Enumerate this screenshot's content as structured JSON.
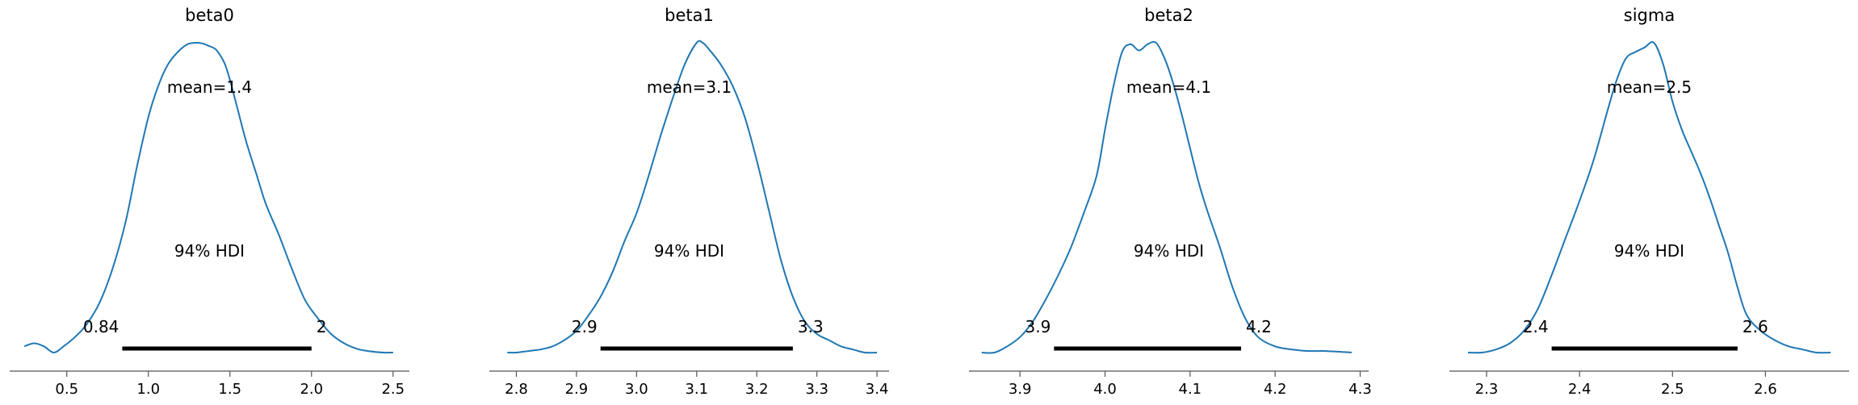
{
  "chart_data": [
    {
      "type": "line",
      "title": "beta0",
      "mean_label": "mean=1.4",
      "hdi_label": "94% HDI",
      "hdi": [
        0.84,
        2.0
      ],
      "hdi_low_label": "0.84",
      "hdi_high_label": "2",
      "xlim": [
        0.15,
        2.6
      ],
      "ticks": [
        0.5,
        1.0,
        1.5,
        2.0,
        2.5
      ],
      "tick_labels": [
        "0.5",
        "1.0",
        "1.5",
        "2.0",
        "2.5"
      ],
      "density_x": [
        0.24,
        0.3,
        0.36,
        0.42,
        0.48,
        0.55,
        0.62,
        0.7,
        0.78,
        0.86,
        0.93,
        1.0,
        1.06,
        1.12,
        1.18,
        1.24,
        1.29,
        1.33,
        1.37,
        1.41,
        1.44,
        1.47,
        1.5,
        1.55,
        1.6,
        1.66,
        1.72,
        1.8,
        1.88,
        1.96,
        2.04,
        2.12,
        2.2,
        2.28,
        2.36,
        2.44,
        2.5
      ],
      "density_y": [
        0.02,
        0.03,
        0.02,
        0.0,
        0.02,
        0.05,
        0.09,
        0.16,
        0.27,
        0.42,
        0.6,
        0.76,
        0.86,
        0.93,
        0.97,
        0.995,
        1.0,
        0.998,
        0.99,
        0.98,
        0.96,
        0.93,
        0.88,
        0.78,
        0.68,
        0.58,
        0.48,
        0.38,
        0.27,
        0.17,
        0.11,
        0.06,
        0.03,
        0.012,
        0.004,
        0.0,
        0.0
      ],
      "density_scale": 0.9
    },
    {
      "type": "line",
      "title": "beta1",
      "mean_label": "mean=3.1",
      "hdi_label": "94% HDI",
      "hdi": [
        2.94,
        3.26
      ],
      "hdi_low_label": "2.9",
      "hdi_high_label": "3.3",
      "xlim": [
        2.755,
        3.42
      ],
      "ticks": [
        2.8,
        2.9,
        3.0,
        3.1,
        3.2,
        3.3,
        3.4
      ],
      "tick_labels": [
        "2.8",
        "2.9",
        "3.0",
        "3.1",
        "3.2",
        "3.3",
        "3.4"
      ],
      "density_x": [
        2.785,
        2.8,
        2.82,
        2.84,
        2.86,
        2.88,
        2.9,
        2.92,
        2.94,
        2.96,
        2.98,
        3.0,
        3.02,
        3.04,
        3.06,
        3.08,
        3.1,
        3.11,
        3.12,
        3.14,
        3.16,
        3.18,
        3.2,
        3.22,
        3.24,
        3.26,
        3.28,
        3.3,
        3.32,
        3.34,
        3.36,
        3.38,
        3.4
      ],
      "density_y": [
        0.0,
        0.0,
        0.005,
        0.01,
        0.02,
        0.04,
        0.07,
        0.12,
        0.18,
        0.26,
        0.36,
        0.45,
        0.57,
        0.7,
        0.82,
        0.93,
        1.0,
        1.0,
        0.98,
        0.93,
        0.86,
        0.76,
        0.62,
        0.46,
        0.3,
        0.18,
        0.1,
        0.06,
        0.04,
        0.02,
        0.01,
        0.0,
        0.0
      ],
      "density_scale": 0.9
    },
    {
      "type": "line",
      "title": "beta2",
      "mean_label": "mean=4.1",
      "hdi_label": "94% HDI",
      "hdi": [
        3.94,
        4.16
      ],
      "hdi_low_label": "3.9",
      "hdi_high_label": "4.2",
      "xlim": [
        3.84,
        4.31
      ],
      "ticks": [
        3.9,
        4.0,
        4.1,
        4.2,
        4.3
      ],
      "tick_labels": [
        "3.9",
        "4.0",
        "4.1",
        "4.2",
        "4.3"
      ],
      "density_x": [
        3.855,
        3.87,
        3.885,
        3.9,
        3.915,
        3.93,
        3.945,
        3.96,
        3.975,
        3.99,
        4.0,
        4.01,
        4.02,
        4.03,
        4.04,
        4.05,
        4.06,
        4.07,
        4.08,
        4.09,
        4.1,
        4.11,
        4.12,
        4.135,
        4.15,
        4.165,
        4.18,
        4.2,
        4.22,
        4.24,
        4.26,
        4.29
      ],
      "density_y": [
        0.0,
        0.0,
        0.02,
        0.05,
        0.1,
        0.17,
        0.25,
        0.34,
        0.45,
        0.57,
        0.72,
        0.86,
        0.97,
        0.995,
        0.975,
        0.995,
        1.0,
        0.95,
        0.87,
        0.77,
        0.66,
        0.55,
        0.46,
        0.34,
        0.21,
        0.11,
        0.05,
        0.02,
        0.01,
        0.005,
        0.005,
        0.0
      ],
      "density_scale": 0.9
    },
    {
      "type": "line",
      "title": "sigma",
      "mean_label": "mean=2.5",
      "hdi_label": "94% HDI",
      "hdi": [
        2.37,
        2.57
      ],
      "hdi_low_label": "2.4",
      "hdi_high_label": "2.6",
      "xlim": [
        2.26,
        2.69
      ],
      "ticks": [
        2.3,
        2.4,
        2.5,
        2.6
      ],
      "tick_labels": [
        "2.3",
        "2.4",
        "2.5",
        "2.6"
      ],
      "density_x": [
        2.28,
        2.295,
        2.31,
        2.325,
        2.34,
        2.355,
        2.37,
        2.385,
        2.4,
        2.415,
        2.43,
        2.44,
        2.45,
        2.46,
        2.47,
        2.48,
        2.49,
        2.5,
        2.51,
        2.52,
        2.53,
        2.54,
        2.55,
        2.56,
        2.57,
        2.58,
        2.595,
        2.61,
        2.625,
        2.64,
        2.655,
        2.67
      ],
      "density_y": [
        0.0,
        0.0,
        0.01,
        0.03,
        0.07,
        0.14,
        0.25,
        0.37,
        0.49,
        0.62,
        0.78,
        0.88,
        0.95,
        0.97,
        0.985,
        1.0,
        0.93,
        0.81,
        0.72,
        0.65,
        0.58,
        0.5,
        0.41,
        0.32,
        0.21,
        0.12,
        0.07,
        0.04,
        0.02,
        0.01,
        0.0,
        0.0
      ],
      "density_scale": 0.9
    }
  ],
  "colors": {
    "density": "#1f77b4",
    "hdi_bar": "#000000",
    "axis": "#555555"
  }
}
